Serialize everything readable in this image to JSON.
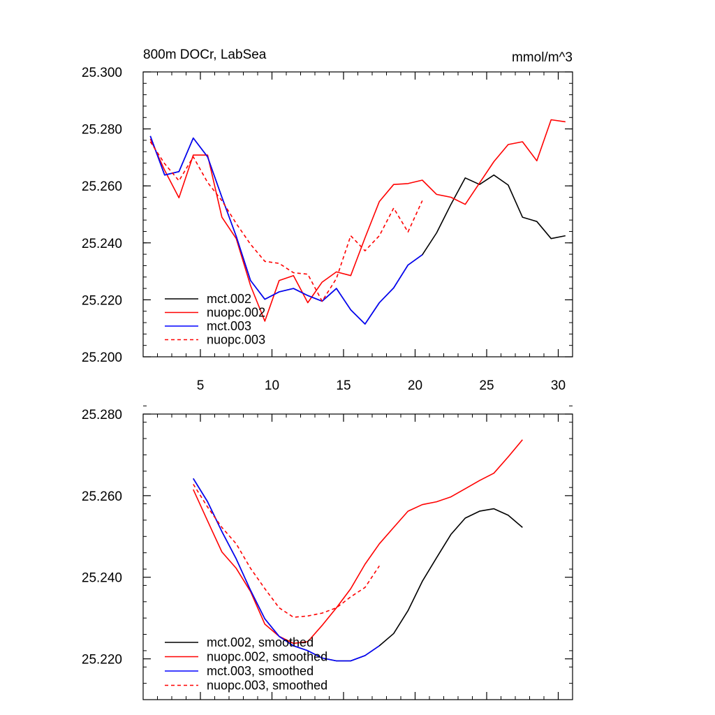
{
  "chart_data": [
    {
      "type": "line",
      "title": "800m DOCr, LabSea",
      "units": "mmol/m^3",
      "xlim": [
        1,
        31
      ],
      "ylim": [
        25.2,
        25.3
      ],
      "x_ticks": [
        5,
        10,
        15,
        20,
        25,
        30
      ],
      "x_tick_labels": [
        "5",
        "10",
        "15",
        "20",
        "25",
        "30"
      ],
      "y_ticks": [
        25.2,
        25.22,
        25.24,
        25.26,
        25.28,
        25.3
      ],
      "y_tick_labels": [
        "25.200",
        "25.220",
        "25.240",
        "25.260",
        "25.280",
        "25.300"
      ],
      "legend_location": "lower-left",
      "series": [
        {
          "name": "mct.002",
          "color": "#000000",
          "dash": "solid",
          "x": [
            1.5,
            2.5,
            3.5,
            4.5,
            5.5,
            6.5,
            7.5,
            8.5,
            9.5,
            10.5,
            11.5,
            12.5,
            13.5,
            14.5,
            15.5,
            16.5,
            17.5,
            18.5,
            19.5,
            20.5,
            21.5,
            22.5,
            23.5,
            24.5,
            25.5,
            26.5,
            27.5,
            28.5,
            29.5,
            30.5
          ],
          "values": [
            25.2775,
            25.2638,
            25.265,
            25.2768,
            25.2702,
            25.256,
            25.2423,
            25.2268,
            25.2202,
            25.2228,
            25.224,
            25.2215,
            25.2195,
            25.224,
            25.2165,
            25.2115,
            25.219,
            25.2242,
            25.2322,
            25.2358,
            25.2435,
            25.2535,
            25.2628,
            25.2605,
            25.2638,
            25.2603,
            25.249,
            25.2475,
            25.2415,
            25.2425
          ]
        },
        {
          "name": "nuopc.002",
          "color": "#ff0000",
          "dash": "solid",
          "x": [
            1.5,
            2.5,
            3.5,
            4.5,
            5.5,
            6.5,
            7.5,
            8.5,
            9.5,
            10.5,
            11.5,
            12.5,
            13.5,
            14.5,
            15.5,
            16.5,
            17.5,
            18.5,
            19.5,
            20.5,
            21.5,
            22.5,
            23.5,
            24.5,
            25.5,
            26.5,
            27.5,
            28.5,
            29.5,
            30.5
          ],
          "values": [
            25.2765,
            25.2655,
            25.2558,
            25.2708,
            25.2708,
            25.249,
            25.2415,
            25.225,
            25.2125,
            25.2268,
            25.2285,
            25.219,
            25.2262,
            25.2298,
            25.2285,
            25.2418,
            25.2545,
            25.2605,
            25.2608,
            25.262,
            25.257,
            25.256,
            25.2535,
            25.261,
            25.2685,
            25.2745,
            25.2755,
            25.2688,
            25.2832,
            25.2825
          ]
        },
        {
          "name": "mct.003",
          "color": "#0000ff",
          "dash": "solid",
          "x": [
            1.5,
            2.5,
            3.5,
            4.5,
            5.5,
            6.5,
            7.5,
            8.5,
            9.5,
            10.5,
            11.5,
            12.5,
            13.5,
            14.5,
            15.5,
            16.5,
            17.5,
            18.5,
            19.5,
            20.5
          ],
          "values": [
            25.2775,
            25.2638,
            25.265,
            25.2768,
            25.2702,
            25.256,
            25.2423,
            25.2268,
            25.2202,
            25.2228,
            25.224,
            25.2215,
            25.2195,
            25.224,
            25.2165,
            25.2115,
            25.219,
            25.2242,
            25.2322,
            25.2358
          ]
        },
        {
          "name": "nuopc.003",
          "color": "#ff0000",
          "dash": "dashed",
          "x": [
            1.5,
            2.5,
            3.5,
            4.5,
            5.5,
            6.5,
            7.5,
            8.5,
            9.5,
            10.5,
            11.5,
            12.5,
            13.5,
            14.5,
            15.5,
            16.5,
            17.5,
            18.5,
            19.5,
            20.5
          ],
          "values": [
            25.2755,
            25.2678,
            25.2618,
            25.2702,
            25.2612,
            25.2548,
            25.2468,
            25.2395,
            25.2335,
            25.2328,
            25.2295,
            25.229,
            25.2195,
            25.2275,
            25.2425,
            25.2372,
            25.2425,
            25.2522,
            25.2438,
            25.2548
          ]
        }
      ]
    },
    {
      "type": "line",
      "title": "",
      "xlim": [
        1,
        31
      ],
      "ylim": [
        25.21,
        25.28
      ],
      "x_ticks": [
        5,
        10,
        15,
        20,
        25,
        30
      ],
      "y_ticks": [
        25.22,
        25.24,
        25.26,
        25.28
      ],
      "y_tick_labels": [
        "25.220",
        "25.240",
        "25.260",
        "25.280"
      ],
      "legend_location": "lower-left",
      "series": [
        {
          "name": "mct.002, smoothed",
          "color": "#000000",
          "dash": "solid",
          "x": [
            4.5,
            5.5,
            6.5,
            7.5,
            8.5,
            9.5,
            10.5,
            11.5,
            12.5,
            13.5,
            14.5,
            15.5,
            16.5,
            17.5,
            18.5,
            19.5,
            20.5,
            21.5,
            22.5,
            23.5,
            24.5,
            25.5,
            26.5,
            27.5
          ],
          "values": [
            25.2642,
            25.2585,
            25.2512,
            25.2445,
            25.2368,
            25.2298,
            25.2255,
            25.2232,
            25.222,
            25.2202,
            25.2195,
            25.2195,
            25.2208,
            25.2232,
            25.2262,
            25.2318,
            25.239,
            25.2448,
            25.2505,
            25.2545,
            25.2562,
            25.2568,
            25.2552,
            25.2522
          ]
        },
        {
          "name": "nuopc.002, smoothed",
          "color": "#ff0000",
          "dash": "solid",
          "x": [
            4.5,
            5.5,
            6.5,
            7.5,
            8.5,
            9.5,
            10.5,
            11.5,
            12.5,
            13.5,
            14.5,
            15.5,
            16.5,
            17.5,
            18.5,
            19.5,
            20.5,
            21.5,
            22.5,
            23.5,
            24.5,
            25.5,
            26.5,
            27.5
          ],
          "values": [
            25.2615,
            25.2538,
            25.2462,
            25.2422,
            25.2365,
            25.2285,
            25.2255,
            25.2238,
            25.2242,
            25.2282,
            25.2325,
            25.2372,
            25.2432,
            25.2482,
            25.2522,
            25.2562,
            25.2578,
            25.2585,
            25.2597,
            25.2617,
            25.2637,
            25.2655,
            25.2695,
            25.2737
          ]
        },
        {
          "name": "mct.003, smoothed",
          "color": "#0000ff",
          "dash": "solid",
          "x": [
            4.5,
            5.5,
            6.5,
            7.5,
            8.5,
            9.5,
            10.5,
            11.5,
            12.5,
            13.5,
            14.5,
            15.5,
            16.5,
            17.5
          ],
          "values": [
            25.2642,
            25.2585,
            25.2512,
            25.2445,
            25.2368,
            25.2298,
            25.2255,
            25.2232,
            25.222,
            25.2202,
            25.2195,
            25.2195,
            25.2208,
            25.2232
          ]
        },
        {
          "name": "nuopc.003, smoothed",
          "color": "#ff0000",
          "dash": "dashed",
          "x": [
            4.5,
            5.5,
            6.5,
            7.5,
            8.5,
            9.5,
            10.5,
            11.5,
            12.5,
            13.5,
            14.5,
            15.5,
            16.5,
            17.5
          ],
          "values": [
            25.2628,
            25.2572,
            25.2522,
            25.2482,
            25.2422,
            25.2372,
            25.2325,
            25.2302,
            25.2305,
            25.2312,
            25.2325,
            25.2352,
            25.2375,
            25.2428
          ]
        }
      ]
    }
  ]
}
